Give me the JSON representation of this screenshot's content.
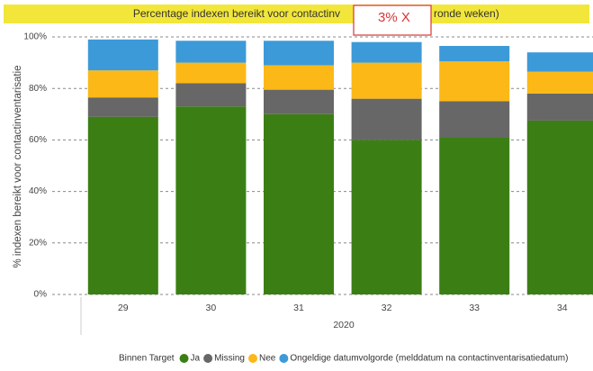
{
  "title_parts": [
    "Percentage indexen bereikt voor contactinv",
    "ronde weken)"
  ],
  "annotation": "3% X",
  "chart_data": {
    "type": "stacked_bar",
    "ylabel": "% indexen bereikt voor contactinventarisatie",
    "xlabel": "2020",
    "legend_title": "Binnen Target",
    "categories": [
      "29",
      "30",
      "31",
      "32",
      "33",
      "34"
    ],
    "series": [
      {
        "name": "Ja",
        "color": "#3b7f14",
        "values": [
          69,
          73,
          70,
          60,
          61,
          67.5
        ]
      },
      {
        "name": "Missing",
        "color": "#676767",
        "values": [
          7.5,
          9,
          9.5,
          16,
          14,
          10.5
        ]
      },
      {
        "name": "Nee",
        "color": "#fbb817",
        "values": [
          10.5,
          8,
          9.5,
          14,
          15.5,
          8.5
        ]
      },
      {
        "name": "Ongeldige datumvolgorde (melddatum na contactinventarisatiedatum)",
        "color": "#3d9ad8",
        "values": [
          12,
          8.5,
          9.5,
          8,
          6,
          7.5
        ]
      }
    ],
    "ylim": [
      0,
      100
    ],
    "yticks": [
      {
        "value": 0,
        "label": "0%"
      },
      {
        "value": 20,
        "label": "20%"
      },
      {
        "value": 40,
        "label": "40%"
      },
      {
        "value": 60,
        "label": "60%"
      },
      {
        "value": 80,
        "label": "80%"
      },
      {
        "value": 100,
        "label": "100%"
      }
    ],
    "grid": true
  }
}
